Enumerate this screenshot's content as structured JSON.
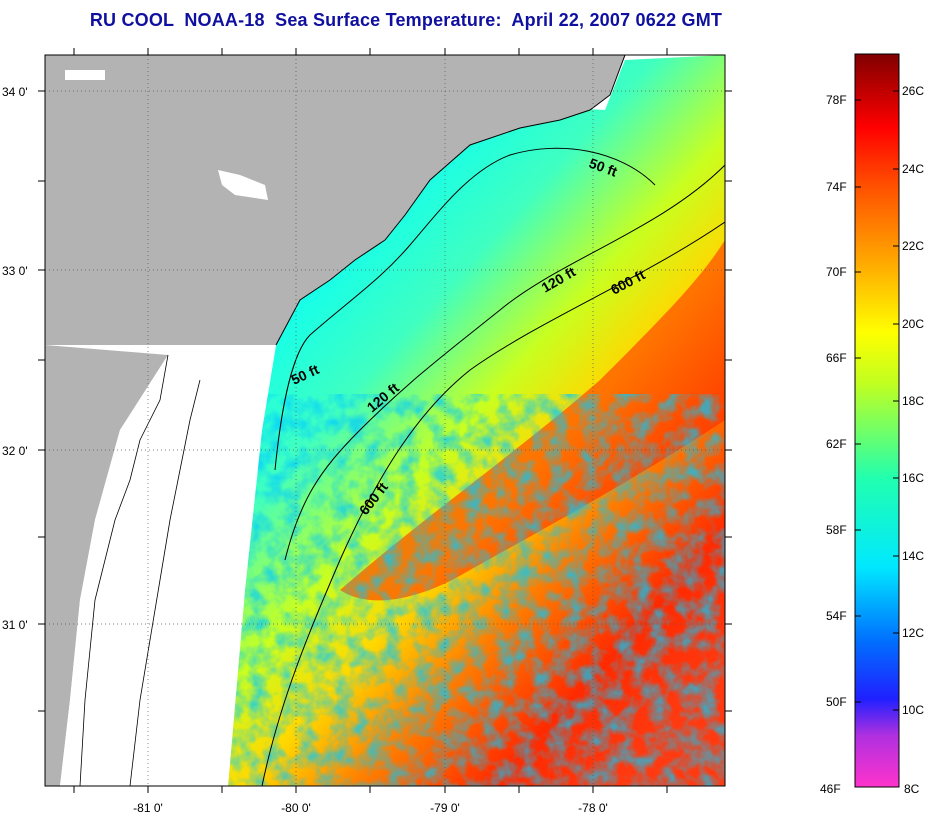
{
  "title": "RU COOL  NOAA-18  Sea Surface Temperature:  April 22, 2007 0622 GMT",
  "map": {
    "lat_labels": [
      "34 0'",
      "33 0'",
      "32 0'",
      "31 0'"
    ],
    "lon_labels": [
      "-81 0'",
      "-80 0'",
      "-79 0'",
      "-78 0'"
    ],
    "contours": [
      "50 ft",
      "120 ft",
      "600 ft"
    ],
    "contour_labels": [
      {
        "text": "50 ft"
      },
      {
        "text": "50 ft"
      },
      {
        "text": "120 ft"
      },
      {
        "text": "120 ft"
      },
      {
        "text": "600 ft"
      },
      {
        "text": "600 ft"
      }
    ],
    "colors": {
      "land": "#b3b3b3",
      "no_data": "#ffffff",
      "coastline": "#000000"
    }
  },
  "colorbar": {
    "fahrenheit_labels": [
      "78F",
      "74F",
      "70F",
      "66F",
      "62F",
      "58F",
      "54F",
      "50F",
      "46F"
    ],
    "celsius_labels": [
      "26C",
      "24C",
      "22C",
      "20C",
      "18C",
      "16C",
      "14C",
      "12C",
      "10C",
      "8C"
    ],
    "colors": [
      "#ff33cc",
      "#8a2be2",
      "#0000ff",
      "#0080ff",
      "#00ffff",
      "#00ff80",
      "#80ff00",
      "#ffff00",
      "#ffa500",
      "#ff4500",
      "#ff0000",
      "#8b0000"
    ]
  }
}
